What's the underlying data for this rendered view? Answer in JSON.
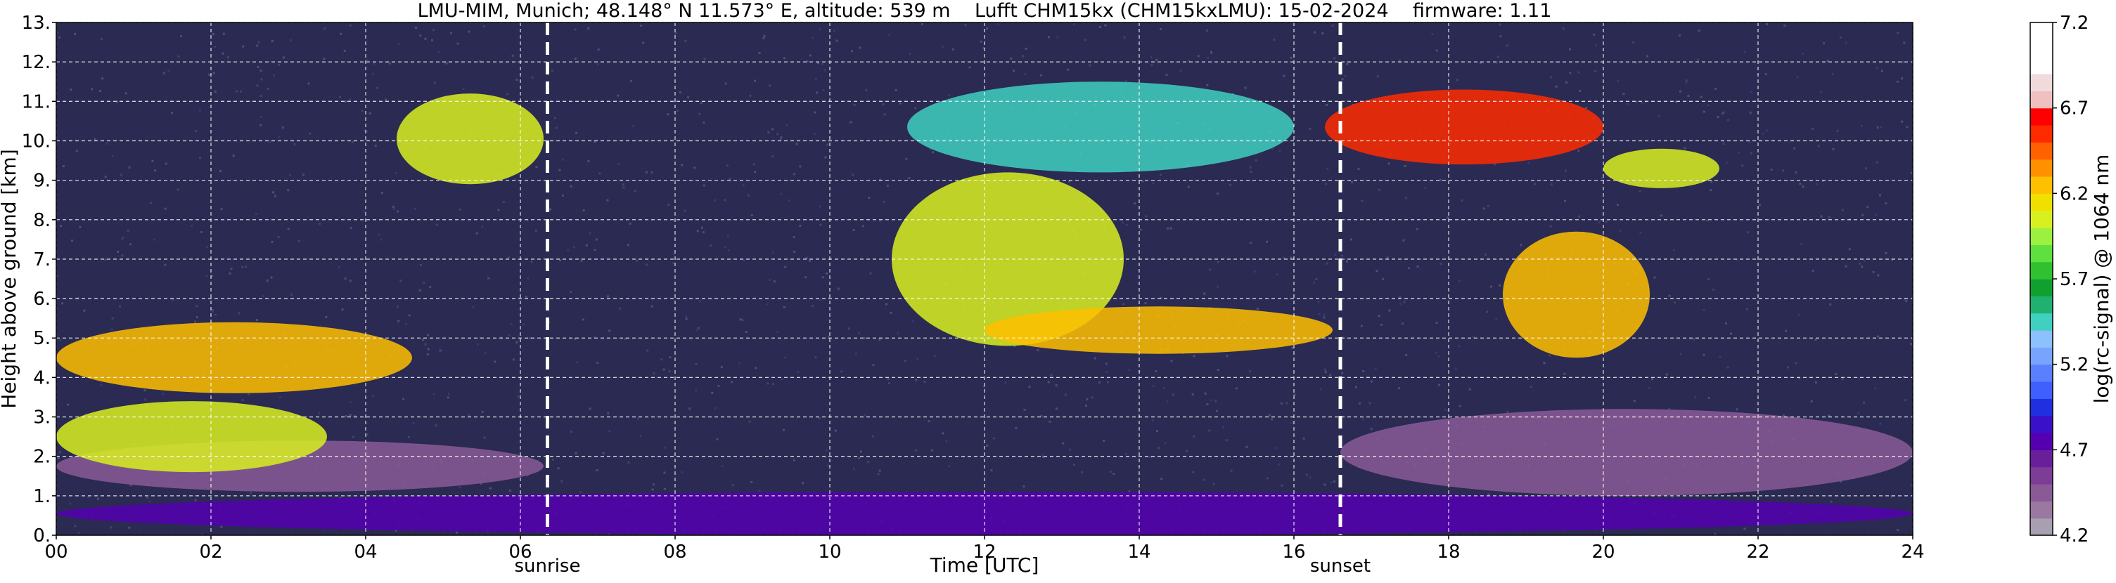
{
  "chart_data": {
    "type": "heatmap",
    "title": "LMU-MIM, Munich; 48.148° N 11.573° E, altitude: 539 m    Lufft CHM15kx (CHM15kxLMU): 15-02-2024    firmware: 1.11",
    "xlabel": "Time [UTC]",
    "ylabel": "Height above ground [km]",
    "xlim": [
      0,
      24
    ],
    "ylim": [
      0,
      13
    ],
    "x_ticks": [
      0,
      2,
      4,
      6,
      8,
      10,
      12,
      14,
      16,
      18,
      20,
      22,
      24
    ],
    "x_tick_labels": [
      "00",
      "02",
      "04",
      "06",
      "08",
      "10",
      "12",
      "14",
      "16",
      "18",
      "20",
      "22",
      "24"
    ],
    "y_ticks": [
      0,
      1,
      2,
      3,
      4,
      5,
      6,
      7,
      8,
      9,
      10,
      11,
      12,
      13
    ],
    "y_tick_labels": [
      "0.",
      "1.",
      "2.",
      "3.",
      "4.",
      "5.",
      "6.",
      "7.",
      "8.",
      "9.",
      "10.",
      "11.",
      "12.",
      "13."
    ],
    "grid": true,
    "background_color": "#2a2a52",
    "event_lines": [
      {
        "label": "sunrise",
        "x": 6.35
      },
      {
        "label": "sunset",
        "x": 16.6
      }
    ],
    "colorbar": {
      "label": "log(rc-signal) @ 1064 nm",
      "range": [
        4.2,
        7.2
      ],
      "tick_values": [
        4.2,
        4.7,
        5.2,
        5.7,
        6.2,
        6.7,
        7.2
      ],
      "tick_labels": [
        "4.2",
        "4.7",
        "5.2",
        "5.7",
        "6.2",
        "6.7",
        "7.2"
      ],
      "colors": [
        "#a8a0b0",
        "#9a78a0",
        "#8a5a96",
        "#7d3d96",
        "#6a1f9a",
        "#5500b0",
        "#3a10c8",
        "#2030e0",
        "#3f60ff",
        "#5a80ff",
        "#78a4ff",
        "#8cc0ff",
        "#40d0c0",
        "#20b070",
        "#10a030",
        "#30c030",
        "#60e040",
        "#9cf040",
        "#d8f020",
        "#f0e000",
        "#ffc000",
        "#ff9000",
        "#ff6000",
        "#ff2a00",
        "#ff0000",
        "#f0c0c0",
        "#f0dada",
        "#ffffff",
        "#ffffff",
        "#ffffff"
      ]
    },
    "features": [
      {
        "name": "boundary-layer",
        "x": [
          0,
          24
        ],
        "y": [
          0,
          1.1
        ],
        "value": 4.8
      },
      {
        "name": "residual-layer",
        "x": [
          0,
          6.3
        ],
        "y": [
          1.1,
          2.4
        ],
        "value": 4.45
      },
      {
        "name": "residual-layer-evening",
        "x": [
          16.6,
          24
        ],
        "y": [
          1.0,
          3.2
        ],
        "value": 4.4
      },
      {
        "name": "low-cloud",
        "x": [
          0,
          3.5
        ],
        "y": [
          1.6,
          3.4
        ],
        "value": 6.0
      },
      {
        "name": "midlevel-cloud-morning",
        "x": [
          0,
          4.6
        ],
        "y": [
          3.6,
          5.4
        ],
        "value": 6.2
      },
      {
        "name": "cirrus-morning",
        "x": [
          4.4,
          6.3
        ],
        "y": [
          8.9,
          11.2
        ],
        "value": 6.1
      },
      {
        "name": "cirrus-plume-1",
        "x": [
          10.8,
          13.8
        ],
        "y": [
          4.8,
          9.2
        ],
        "value": 6.0
      },
      {
        "name": "cloud-base-afternoon",
        "x": [
          12,
          16.5
        ],
        "y": [
          4.6,
          5.8
        ],
        "value": 6.2
      },
      {
        "name": "cirrus-top-midday",
        "x": [
          11,
          16
        ],
        "y": [
          9.2,
          11.5
        ],
        "value": 5.4
      },
      {
        "name": "cirrus-evening",
        "x": [
          16.4,
          20
        ],
        "y": [
          9.4,
          11.3
        ],
        "value": 6.5
      },
      {
        "name": "cirrus-fall-streaks",
        "x": [
          18.7,
          20.6
        ],
        "y": [
          4.5,
          7.7
        ],
        "value": 6.3
      },
      {
        "name": "cirrus-late",
        "x": [
          20,
          21.5
        ],
        "y": [
          8.8,
          9.8
        ],
        "value": 6.0
      }
    ]
  }
}
